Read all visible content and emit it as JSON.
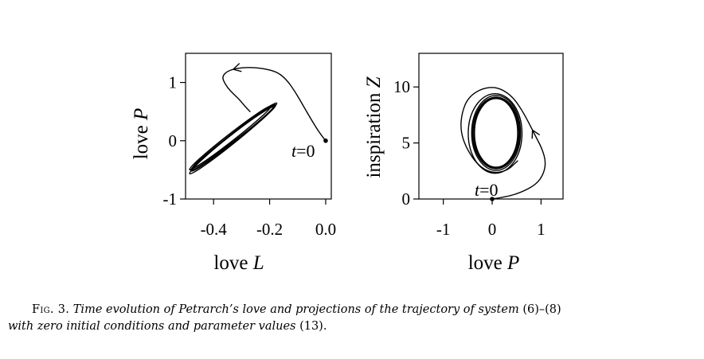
{
  "chart_data": [
    {
      "type": "line",
      "title": "",
      "xlabel": {
        "prefix": "love ",
        "var": "L"
      },
      "ylabel": {
        "prefix": "love ",
        "var": "P"
      },
      "xlim": [
        -0.5,
        0.02
      ],
      "ylim": [
        -1.0,
        1.5
      ],
      "xticks": [
        "-0.4",
        "-0.2",
        "0.0"
      ],
      "xtick_values": [
        -0.4,
        -0.2,
        0.0
      ],
      "yticks": [
        "1",
        "0",
        "-1"
      ],
      "ytick_values": [
        1,
        0,
        -1
      ],
      "annotation": {
        "var": "t",
        "rest": "=0"
      },
      "initial_point": {
        "x": 0.0,
        "y": 0.0
      },
      "transient": [
        [
          0.0,
          0.0
        ],
        [
          -0.02,
          0.12
        ],
        [
          -0.05,
          0.35
        ],
        [
          -0.08,
          0.6
        ],
        [
          -0.11,
          0.85
        ],
        [
          -0.14,
          1.05
        ],
        [
          -0.17,
          1.17
        ],
        [
          -0.21,
          1.23
        ],
        [
          -0.26,
          1.26
        ],
        [
          -0.31,
          1.25
        ],
        [
          -0.35,
          1.2
        ],
        [
          -0.37,
          1.1
        ],
        [
          -0.36,
          0.98
        ],
        [
          -0.34,
          0.85
        ],
        [
          -0.31,
          0.72
        ],
        [
          -0.29,
          0.6
        ],
        [
          -0.27,
          0.5
        ]
      ],
      "cycles": [
        {
          "center": [
            -0.33,
            0.05
          ],
          "rx": 0.19,
          "ry": 0.065,
          "angle_deg": 38
        },
        {
          "center": [
            -0.33,
            0.06
          ],
          "rx": 0.18,
          "ry": 0.058,
          "angle_deg": 37
        },
        {
          "center": [
            -0.33,
            0.04
          ],
          "rx": 0.2,
          "ry": 0.072,
          "angle_deg": 39
        },
        {
          "center": [
            -0.34,
            0.05
          ],
          "rx": 0.185,
          "ry": 0.062,
          "angle_deg": 38
        }
      ],
      "arrow_at_index": 9
    },
    {
      "type": "line",
      "title": "",
      "xlabel": {
        "prefix": "love ",
        "var": "P"
      },
      "ylabel": {
        "prefix": "inspiration ",
        "var": "Z"
      },
      "xlim": [
        -1.5,
        1.45
      ],
      "ylim": [
        0,
        13
      ],
      "xticks": [
        "-1",
        "0",
        "1"
      ],
      "xtick_values": [
        -1,
        0,
        1
      ],
      "yticks": [
        "10",
        "5",
        "0"
      ],
      "ytick_values": [
        10,
        5,
        0
      ],
      "annotation": {
        "var": "t",
        "rest": "=0"
      },
      "initial_point": {
        "x": 0.0,
        "y": 0.0
      },
      "transient": [
        [
          0.0,
          0.0
        ],
        [
          0.3,
          0.2
        ],
        [
          0.6,
          0.6
        ],
        [
          0.9,
          1.3
        ],
        [
          1.05,
          2.2
        ],
        [
          1.1,
          3.3
        ],
        [
          1.02,
          4.5
        ],
        [
          0.9,
          5.5
        ],
        [
          0.75,
          6.8
        ],
        [
          0.6,
          8.0
        ],
        [
          0.42,
          9.1
        ],
        [
          0.2,
          9.8
        ],
        [
          0.0,
          10.0
        ],
        [
          -0.25,
          9.8
        ],
        [
          -0.5,
          9.0
        ],
        [
          -0.62,
          7.7
        ],
        [
          -0.65,
          6.2
        ],
        [
          -0.55,
          4.7
        ],
        [
          -0.3,
          3.0
        ],
        [
          0.0,
          2.3
        ],
        [
          0.3,
          2.5
        ],
        [
          0.52,
          3.4
        ]
      ],
      "cycles": [
        {
          "center": [
            0.08,
            5.9
          ],
          "rx": 0.45,
          "ry": 3.1,
          "angle_deg": 0
        },
        {
          "center": [
            0.08,
            5.9
          ],
          "rx": 0.5,
          "ry": 3.35,
          "angle_deg": 0
        },
        {
          "center": [
            0.06,
            5.85
          ],
          "rx": 0.55,
          "ry": 3.55,
          "angle_deg": 0
        },
        {
          "center": [
            0.08,
            5.9
          ],
          "rx": 0.48,
          "ry": 3.2,
          "angle_deg": 0
        }
      ],
      "arrow_at_index": 7
    }
  ],
  "caption": {
    "lead": "Fig. 3.",
    "text": "Time evolution of Petrarch’s love and projections of the trajectory of system",
    "ref1": "(6)–(8)",
    "text2": "with zero initial conditions and parameter values",
    "ref2": "(13)",
    "end": "."
  }
}
